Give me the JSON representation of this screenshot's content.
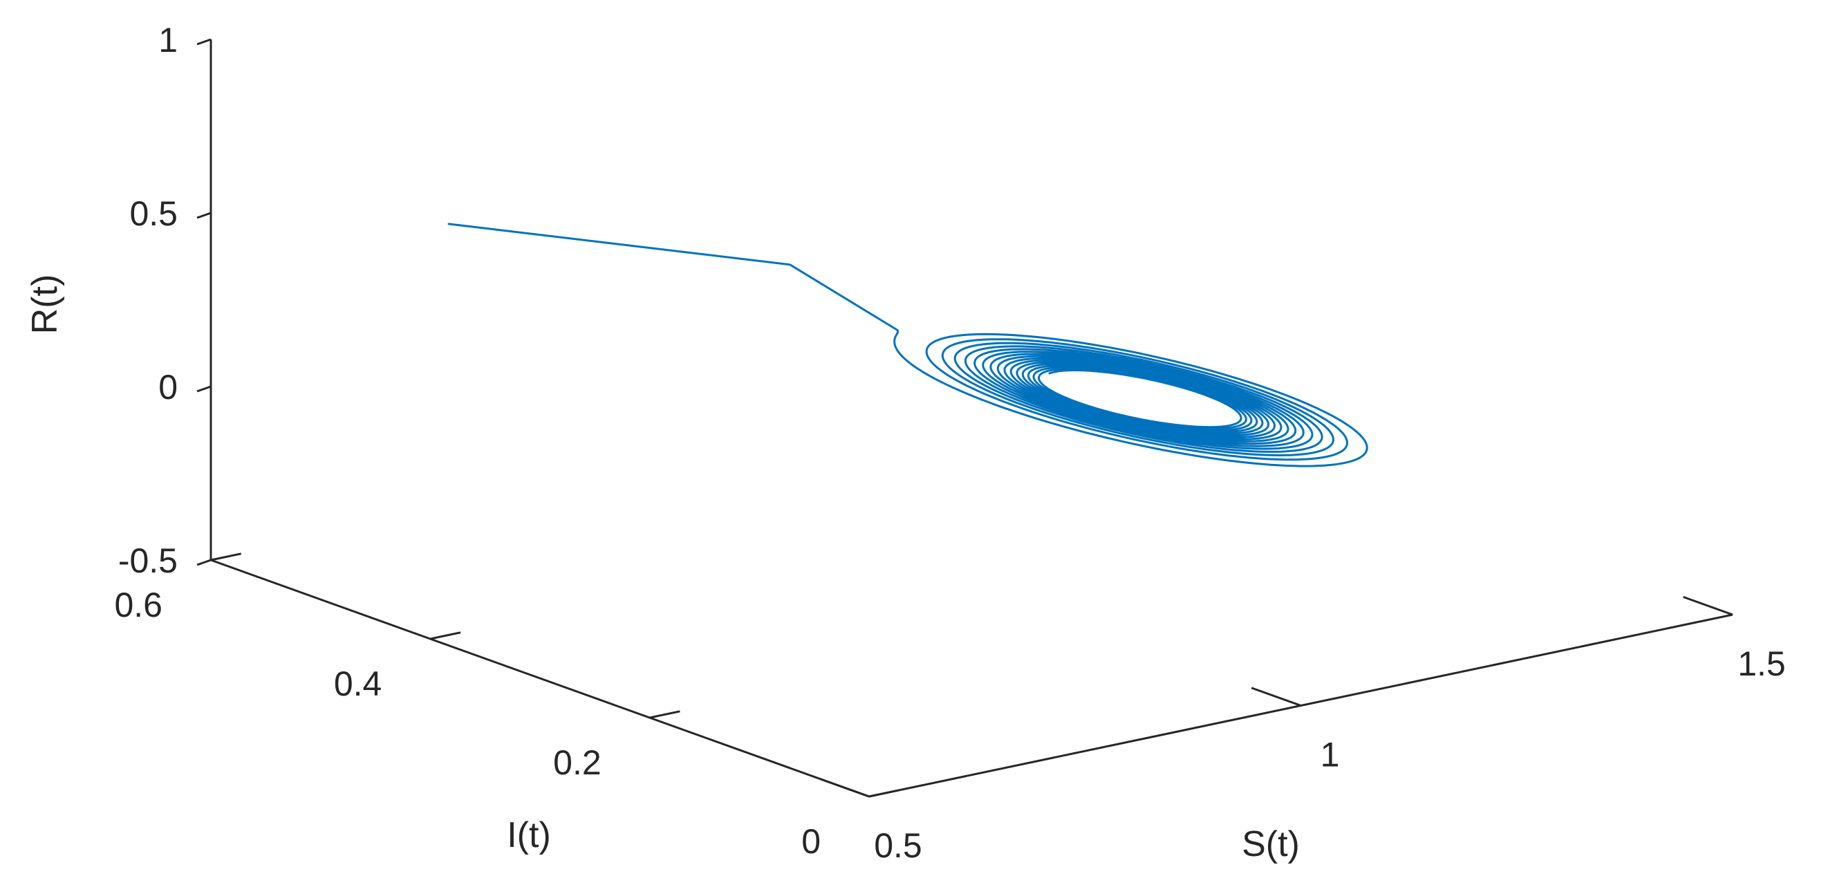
{
  "chart_data": {
    "type": "line3d",
    "title": "",
    "xlabel": "S(t)",
    "ylabel": "I(t)",
    "zlabel": "R(t)",
    "xlim": [
      0.5,
      1.5
    ],
    "ylim": [
      0,
      0.6
    ],
    "zlim": [
      -0.5,
      1
    ],
    "xticks": [
      {
        "value": 0.5,
        "label": "0.5"
      },
      {
        "value": 1,
        "label": "1"
      },
      {
        "value": 1.5,
        "label": "1.5"
      }
    ],
    "yticks": [
      {
        "value": 0,
        "label": "0"
      },
      {
        "value": 0.2,
        "label": "0.2"
      },
      {
        "value": 0.4,
        "label": "0.4"
      },
      {
        "value": 0.6,
        "label": "0.6"
      }
    ],
    "zticks": [
      {
        "value": -0.5,
        "label": "-0.5"
      },
      {
        "value": 0,
        "label": "0"
      },
      {
        "value": 0.5,
        "label": "0.5"
      },
      {
        "value": 1,
        "label": "1"
      }
    ],
    "grid": false,
    "legend": "none",
    "series": [
      {
        "color": "#0072BD",
        "description_points_note": "trajectory approximated as a transient segment followed by a decaying spiral",
        "transient": [
          {
            "S": 0.75,
            "I": 0.58,
            "R": 0.36
          },
          {
            "S": 0.98,
            "I": 0.45,
            "R": 0.27
          }
        ],
        "spiral": {
          "center": {
            "S": 1.12,
            "I": 0.24,
            "R": 0.05
          },
          "initial_amplitude": {
            "S": 0.17,
            "I": 0.19
          },
          "final_amplitude": {
            "S": 0.07,
            "I": 0.07
          },
          "turns": 16,
          "r_coupling": -0.35
        }
      }
    ]
  }
}
